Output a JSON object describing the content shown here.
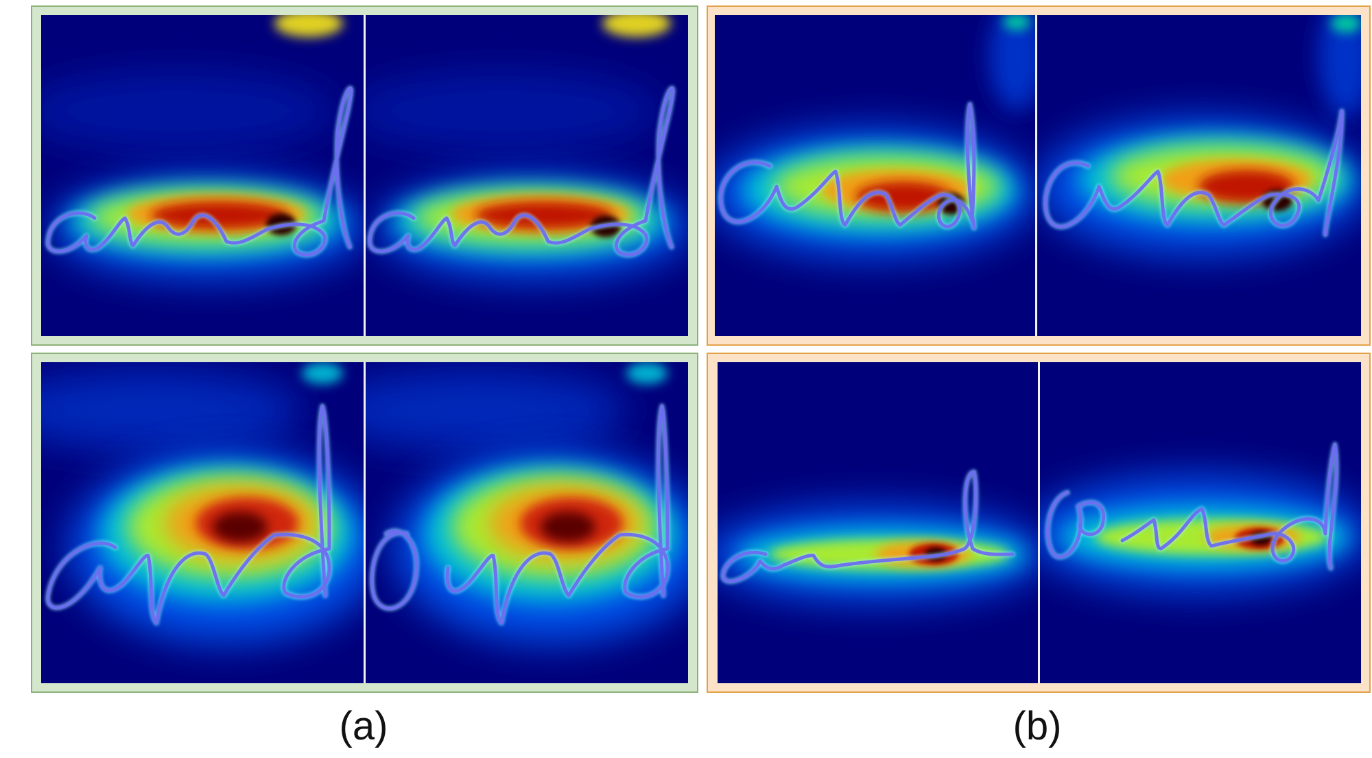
{
  "figure": {
    "word_written": "and",
    "captions": {
      "a": "(a)",
      "b": "(b)"
    },
    "colors": {
      "panel_a_border": "#8cb27a",
      "panel_a_fill": "#d4e6cc",
      "panel_b_border": "#e2a24a",
      "panel_b_fill": "#fce2c6",
      "heatmap_background": "#00007a",
      "stroke": "#6d6df0",
      "stroke_highlight": "#9cf7ff"
    },
    "groups": [
      {
        "id": "a",
        "rows": [
          {
            "row": 1,
            "images": [
              "pair-left",
              "pair-right"
            ]
          },
          {
            "row": 2,
            "images": [
              "pair-left",
              "pair-right"
            ]
          }
        ]
      },
      {
        "id": "b",
        "rows": [
          {
            "row": 1,
            "images": [
              "pair-left",
              "pair-right"
            ]
          },
          {
            "row": 2,
            "images": [
              "pair-left",
              "pair-right"
            ]
          }
        ]
      }
    ]
  }
}
